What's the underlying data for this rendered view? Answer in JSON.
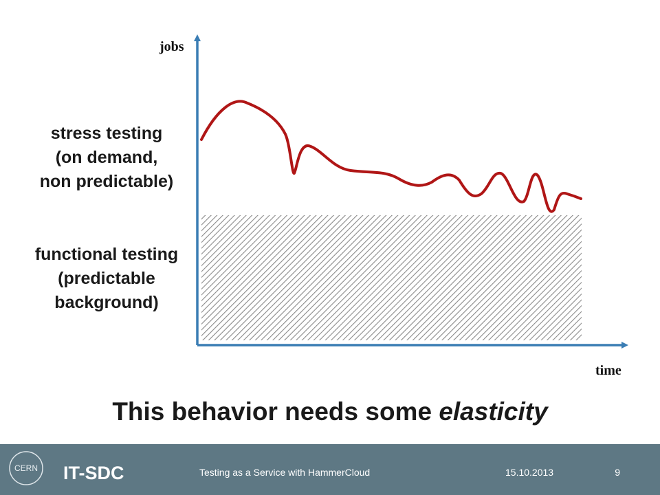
{
  "axes": {
    "y_label": "jobs",
    "x_label": "time"
  },
  "regions": [
    {
      "lines": [
        "stress testing",
        "(on demand,",
        "non predictable)"
      ]
    },
    {
      "lines": [
        "functional testing",
        "(predictable",
        "background)"
      ]
    }
  ],
  "headline": {
    "text": "This behavior needs some",
    "emphasis": "elasticity"
  },
  "footer": {
    "logo": "CERN",
    "group": "IT-SDC",
    "talk": "Testing as a Service with HammerCloud",
    "date": "15.10.2013",
    "page": "9"
  }
}
